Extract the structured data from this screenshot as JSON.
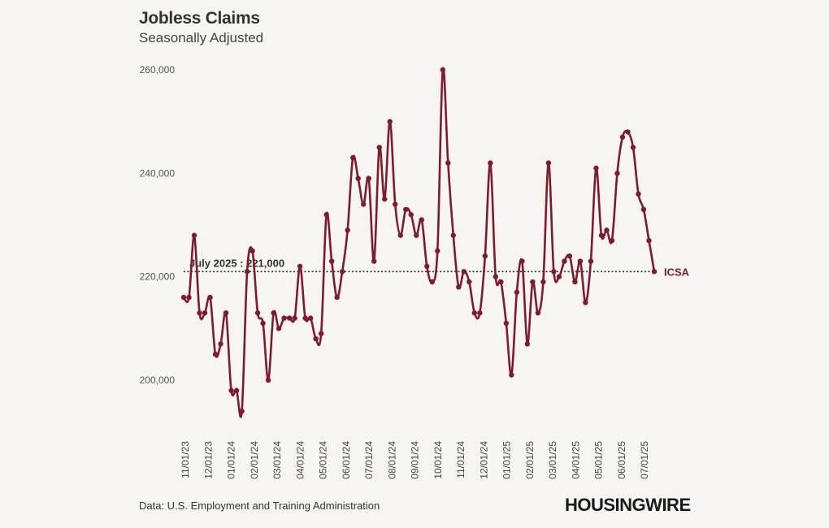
{
  "title": "Jobless Claims",
  "subtitle": "Seasonally Adjusted",
  "source": "Data: U.S. Employment and Training Administration",
  "logo": "HOUSINGWIRE",
  "chart_data": {
    "type": "line",
    "title": "Jobless Claims",
    "subtitle": "Seasonally Adjusted",
    "xlabel": "",
    "ylabel": "",
    "ylim": [
      190000,
      262000
    ],
    "yticks": [
      200000,
      220000,
      240000,
      260000
    ],
    "ytick_labels": [
      "200,000",
      "220,000",
      "240,000",
      "260,000"
    ],
    "x_tick_labels": [
      "11/01/23",
      "12/01/23",
      "01/01/24",
      "02/01/24",
      "03/01/24",
      "04/01/24",
      "05/01/24",
      "06/01/24",
      "07/01/24",
      "08/01/24",
      "09/01/24",
      "10/01/24",
      "11/01/24",
      "12/01/24",
      "01/01/25",
      "02/01/25",
      "03/01/25",
      "04/01/25",
      "05/01/25",
      "06/01/25",
      "07/01/25"
    ],
    "grid": false,
    "series": [
      {
        "name": "ICSA",
        "color": "#7f1b2b",
        "markers": true,
        "values": [
          216000,
          216000,
          228000,
          213000,
          213000,
          216000,
          205000,
          207000,
          213000,
          198000,
          198000,
          194000,
          221000,
          225000,
          213000,
          211000,
          200000,
          213000,
          210000,
          212000,
          212000,
          212000,
          222000,
          212000,
          212000,
          208000,
          209000,
          232000,
          223000,
          216000,
          221000,
          229000,
          243000,
          239000,
          234000,
          239000,
          223000,
          245000,
          235000,
          250000,
          234000,
          228000,
          233000,
          232000,
          228000,
          231000,
          222000,
          219000,
          225000,
          260000,
          242000,
          228000,
          218000,
          221000,
          219000,
          213000,
          213000,
          224000,
          242000,
          220000,
          219000,
          211000,
          201000,
          217000,
          223000,
          207000,
          219000,
          213000,
          219000,
          242000,
          221000,
          220000,
          223000,
          224000,
          219000,
          223000,
          215000,
          223000,
          241000,
          228000,
          229000,
          227000,
          240000,
          247000,
          248000,
          245000,
          236000,
          233000,
          227000,
          221000
        ]
      }
    ],
    "reference_line": {
      "value": 221000,
      "label": "July 2025 : 221,000",
      "style": "dotted",
      "color": "#333333"
    }
  }
}
